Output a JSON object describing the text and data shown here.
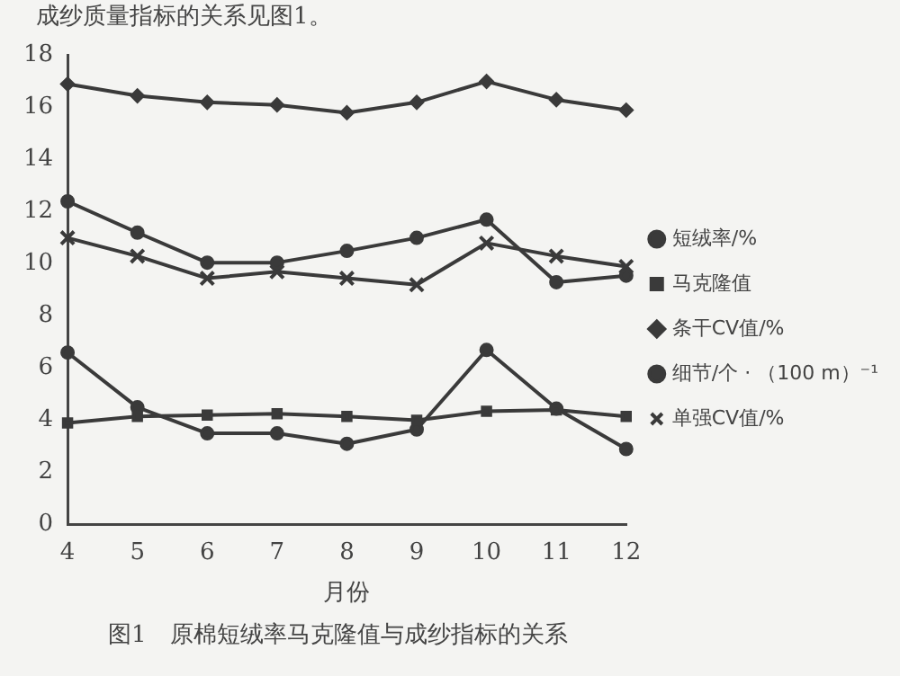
{
  "chart_data": {
    "type": "line",
    "xlabel": "月份",
    "categories": [
      "4",
      "5",
      "6",
      "7",
      "8",
      "9",
      "10",
      "11",
      "12"
    ],
    "ylim": [
      0,
      18
    ],
    "yticks": [
      0,
      2,
      4,
      6,
      8,
      10,
      12,
      14,
      16,
      18
    ],
    "grid": false,
    "legend": "right",
    "series": [
      {
        "name": "短绒率/%",
        "color": "#3a3a3a",
        "marker": "circle",
        "values": [
          12.4,
          11.2,
          10.05,
          10.05,
          10.5,
          11.0,
          11.7,
          9.3,
          9.55
        ]
      },
      {
        "name": "马克隆值",
        "color": "#3a3a3a",
        "marker": "square",
        "values": [
          3.9,
          4.15,
          4.2,
          4.25,
          4.15,
          4.0,
          4.35,
          4.4,
          4.15
        ]
      },
      {
        "name": "条干CV值/%",
        "color": "#3a3a3a",
        "marker": "diamond",
        "values": [
          16.9,
          16.45,
          16.2,
          16.1,
          15.8,
          16.2,
          17.0,
          16.3,
          15.9
        ]
      },
      {
        "name": "细节/个 · （100 m）⁻¹",
        "color": "#3a3a3a",
        "marker": "circle",
        "values": [
          6.6,
          4.5,
          3.5,
          3.5,
          3.1,
          3.65,
          6.7,
          4.45,
          2.9
        ]
      },
      {
        "name": "单强CV值/%",
        "color": "#3a3a3a",
        "marker": "cross",
        "values": [
          11.0,
          10.3,
          9.45,
          9.7,
          9.45,
          9.2,
          10.8,
          10.3,
          9.9
        ]
      }
    ],
    "annotations": [
      "成纱质量指标的关系见图1。",
      "图1　原棉短绒率马克隆值与成纱指标的关系"
    ]
  }
}
